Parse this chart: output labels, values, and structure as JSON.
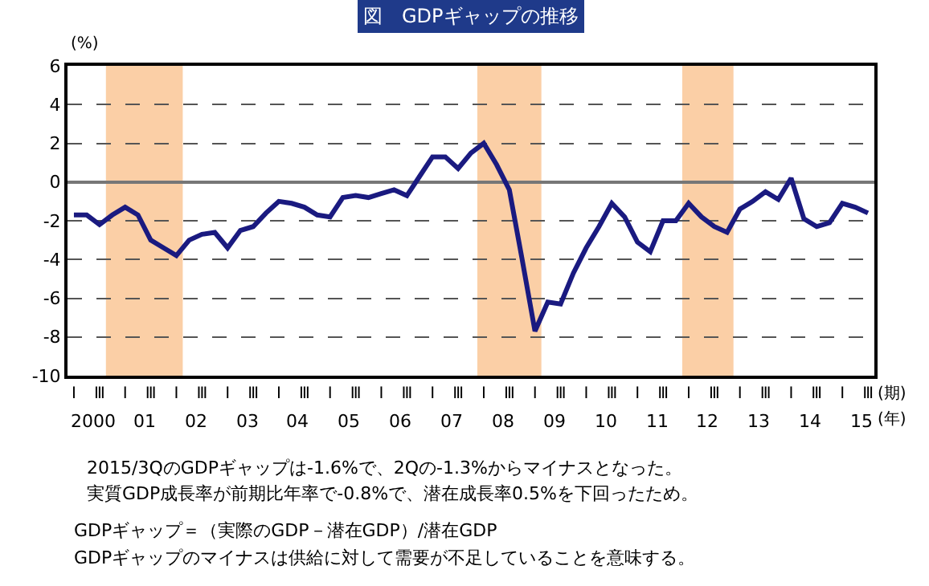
{
  "chart_data": {
    "type": "line",
    "title": "図　GDPギャップの推移",
    "ylabel": "(%)",
    "xlabel": "(期)",
    "x2label": "(年)",
    "categories": [
      "Ⅰ",
      null,
      "Ⅲ",
      null,
      "Ⅰ",
      null,
      "Ⅲ",
      null,
      "Ⅰ",
      null,
      "Ⅲ",
      null,
      "Ⅰ",
      null,
      "Ⅲ",
      null,
      "Ⅰ",
      null,
      "Ⅲ",
      null,
      "Ⅰ",
      null,
      "Ⅲ",
      null,
      "Ⅰ",
      null,
      "Ⅲ",
      null,
      "Ⅰ",
      null,
      "Ⅲ",
      null,
      "Ⅰ",
      null,
      "Ⅲ",
      null,
      "Ⅰ",
      null,
      "Ⅲ",
      null,
      "Ⅰ",
      null,
      "Ⅲ",
      null,
      "Ⅰ",
      null,
      "Ⅲ",
      null,
      "Ⅰ",
      null,
      "Ⅲ",
      null,
      "Ⅰ",
      null,
      "Ⅲ",
      null,
      "Ⅰ",
      null,
      "Ⅲ",
      null,
      "Ⅰ",
      null,
      "Ⅲ"
    ],
    "series": [
      {
        "color": "#1a1a80",
        "values": [
          -1.7,
          -1.7,
          -2.2,
          -1.7,
          -1.3,
          -1.7,
          -3.0,
          -3.4,
          -3.8,
          -3.0,
          -2.7,
          -2.6,
          -3.4,
          -2.5,
          -2.3,
          -1.6,
          -1.0,
          -1.1,
          -1.3,
          -1.7,
          -1.8,
          -0.8,
          -0.7,
          -0.8,
          -0.6,
          -0.4,
          -0.7,
          0.3,
          1.3,
          1.3,
          0.7,
          1.5,
          2.0,
          0.9,
          -0.4,
          -4.0,
          -7.7,
          -6.2,
          -6.3,
          -4.7,
          -3.4,
          -2.3,
          -1.1,
          -1.8,
          -3.1,
          -3.6,
          -2.0,
          -2.0,
          -1.1,
          -1.8,
          -2.3,
          -2.6,
          -1.4,
          -1.0,
          -0.5,
          -0.9,
          0.2,
          -1.9,
          -2.3,
          -2.1,
          -1.1,
          -1.3,
          -1.6
        ]
      }
    ],
    "ylim": [
      -10,
      6
    ],
    "yticks": [
      -10,
      -8,
      -6,
      -4,
      -2,
      0,
      2,
      4,
      6
    ],
    "grid": "y",
    "line_style": "solid",
    "annotations": [
      "2000",
      "01",
      "02",
      "03",
      "04",
      "05",
      "06",
      "07",
      "08",
      "09",
      "10",
      "11",
      "12",
      "13",
      "14",
      "15",
      "2015/3QのGDPギャップは-1.6%で、2Qの-1.3%からマイナスとなった。",
      "実質GDP成長率が前期比年率で-0.8%で、潜在成長率0.5%を下回ったため。",
      "GDPギャップ＝（実際のGDP－潜在GDP）/潜在GDP",
      "GDPギャップのマイナスは供給に対して需要が不足していることを意味する。"
    ]
  }
}
